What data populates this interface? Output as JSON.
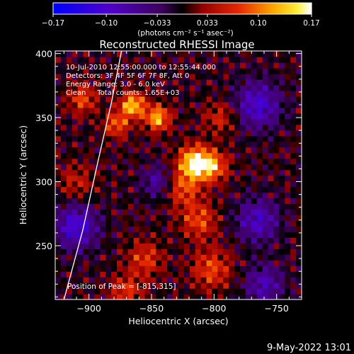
{
  "chart_data": {
    "type": "heatmap",
    "title": "Reconstructed RHESSI Image",
    "xlabel": "Heliocentric X (arcsec)",
    "ylabel": "Heliocentric Y (arcsec)",
    "xlim": [
      -927,
      -730
    ],
    "ylim": [
      208,
      402
    ],
    "x_ticks": [
      -900,
      -850,
      -800,
      -750
    ],
    "y_ticks": [
      250,
      300,
      350,
      400
    ],
    "colorbar": {
      "range": [
        -0.17,
        0.17
      ],
      "ticks": [
        -0.17,
        -0.1,
        -0.033,
        0.033,
        0.1,
        0.17
      ],
      "tick_labels": [
        "−0.17",
        "−0.10",
        "−0.033",
        "0.033",
        "0.10",
        "0.17"
      ],
      "units_label": "(photons cm⁻² s⁻¹ asec⁻²)"
    },
    "annotations": [
      "10-Jul-2010 12:55:00.000 to 12:55:44.000",
      "Detectors: 3F 4F 5F 6F 7F 8F, Att 0",
      "Energy Range: 3.0 - 6.0 keV",
      "Clean     Total counts: 1.65E+03"
    ],
    "peak_label": "Position of Peak = [-815,315]",
    "peak": [
      -815,
      315
    ],
    "limb_curve": [
      [
        -920,
        208
      ],
      [
        -905,
        262
      ],
      [
        -893,
        315
      ],
      [
        -882,
        362
      ],
      [
        -874,
        402
      ]
    ],
    "emission_blobs": [
      {
        "x": -815,
        "y": 315,
        "amp": 0.17,
        "sigma": 9
      },
      {
        "x": -800,
        "y": 312,
        "amp": 0.1,
        "sigma": 8
      },
      {
        "x": -865,
        "y": 360,
        "amp": 0.14,
        "sigma": 7
      },
      {
        "x": -845,
        "y": 350,
        "amp": 0.13,
        "sigma": 7
      },
      {
        "x": -878,
        "y": 345,
        "amp": 0.09,
        "sigma": 7
      },
      {
        "x": -825,
        "y": 295,
        "amp": 0.08,
        "sigma": 10
      },
      {
        "x": -812,
        "y": 270,
        "amp": 0.08,
        "sigma": 10
      },
      {
        "x": -802,
        "y": 232,
        "amp": 0.08,
        "sigma": 11
      },
      {
        "x": -855,
        "y": 240,
        "amp": 0.07,
        "sigma": 10
      },
      {
        "x": -870,
        "y": 215,
        "amp": 0.07,
        "sigma": 9
      },
      {
        "x": -795,
        "y": 350,
        "amp": 0.06,
        "sigma": 9
      },
      {
        "x": -905,
        "y": 365,
        "amp": 0.08,
        "sigma": 8
      },
      {
        "x": -910,
        "y": 300,
        "amp": 0.05,
        "sigma": 10
      }
    ],
    "negative_blobs": [
      {
        "x": -910,
        "y": 265,
        "amp": -0.11,
        "sigma": 12
      },
      {
        "x": -765,
        "y": 360,
        "amp": -0.1,
        "sigma": 13
      },
      {
        "x": -765,
        "y": 270,
        "amp": -0.09,
        "sigma": 12
      },
      {
        "x": -845,
        "y": 300,
        "amp": -0.07,
        "sigma": 9
      },
      {
        "x": -760,
        "y": 220,
        "amp": -0.08,
        "sigma": 11
      }
    ]
  },
  "footer_timestamp": "9-May-2022 13:01"
}
